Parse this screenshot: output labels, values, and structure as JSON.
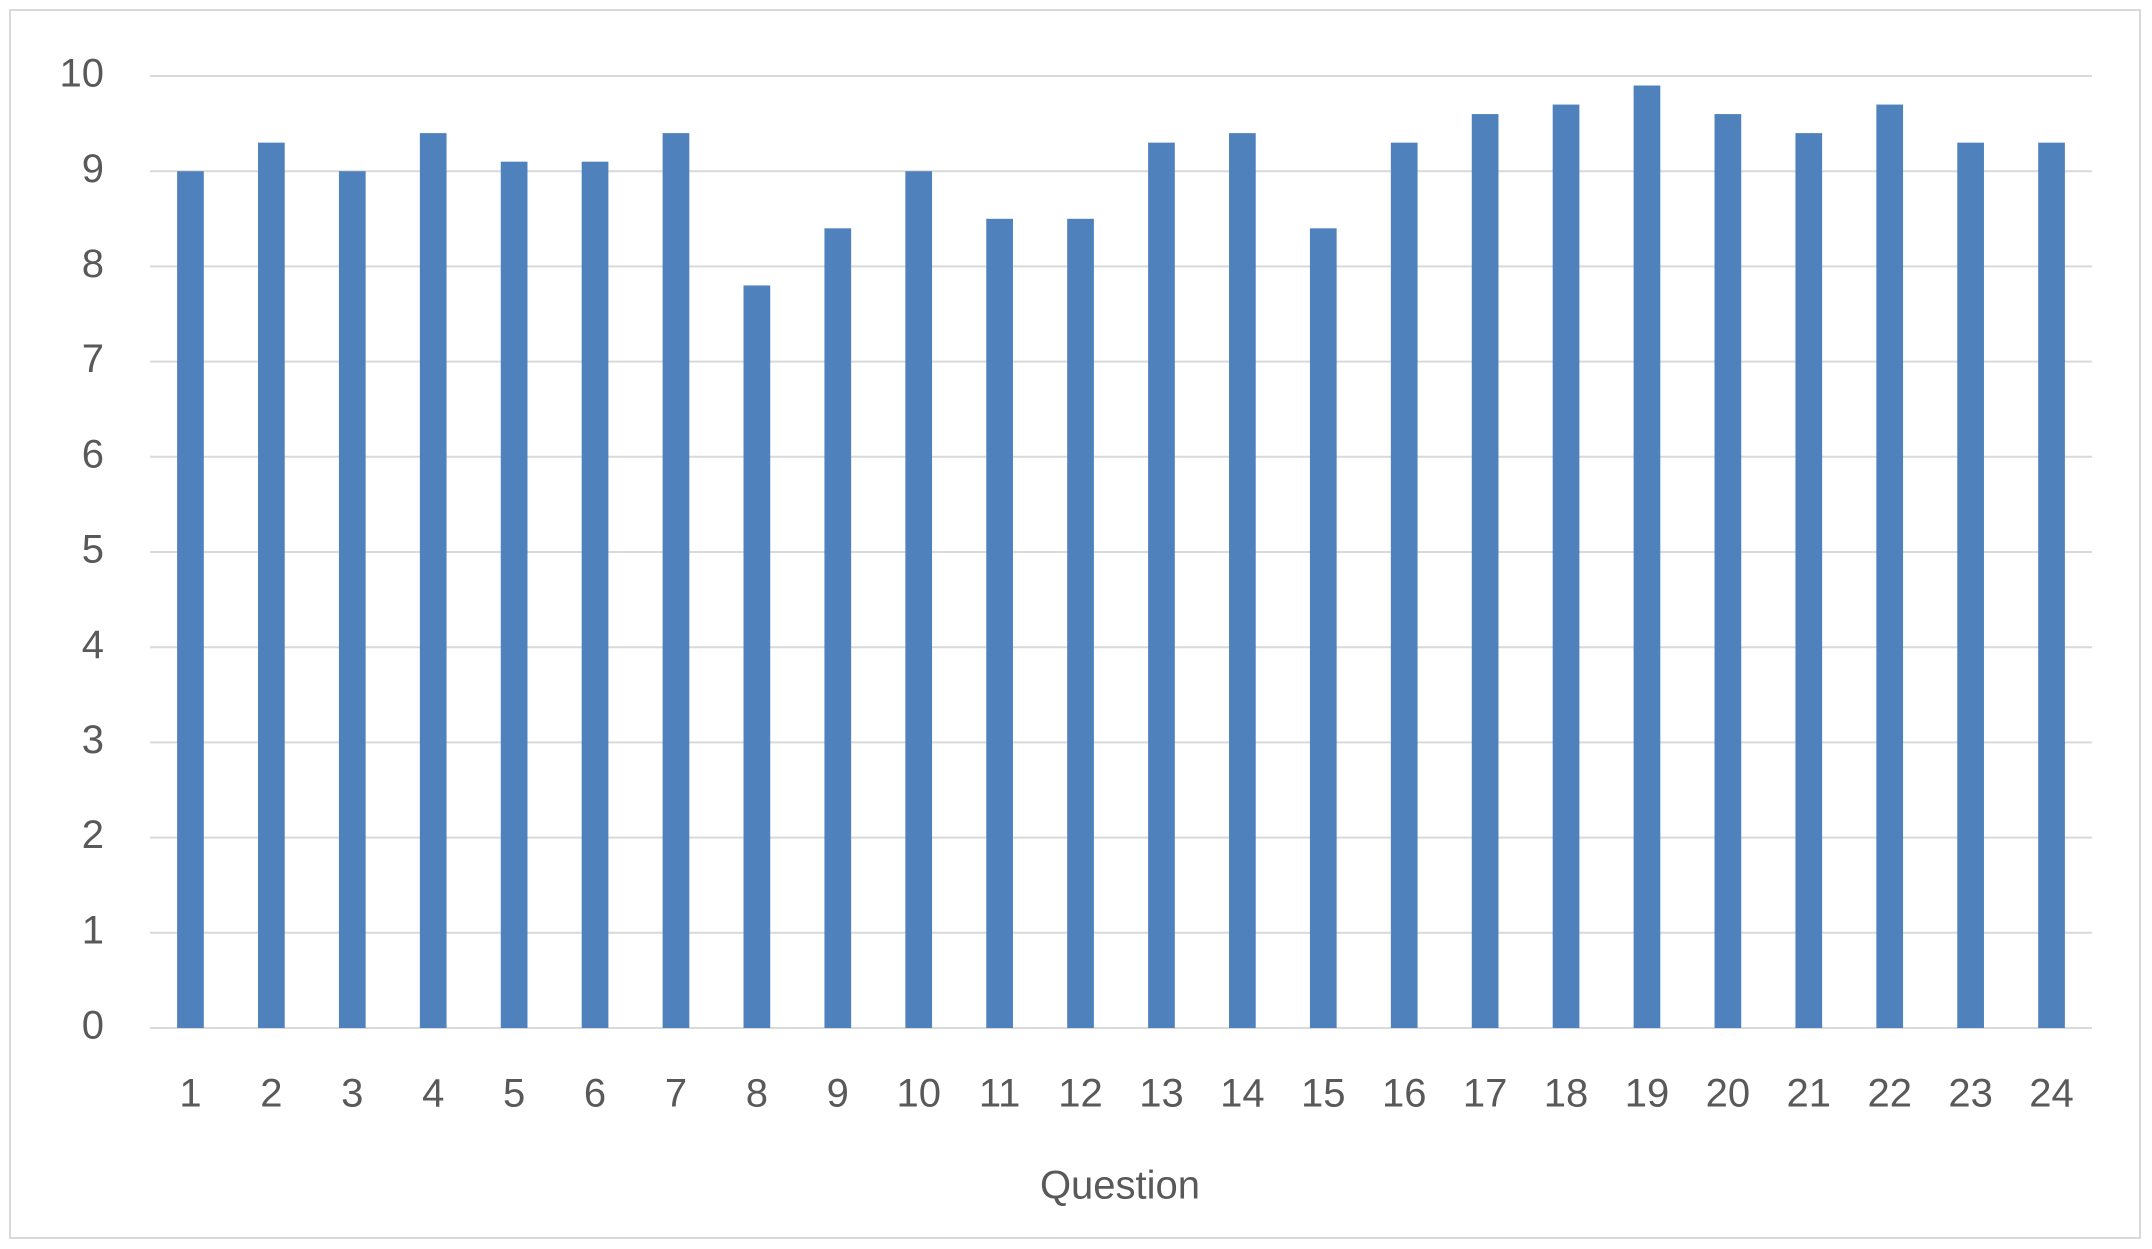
{
  "chart_data": {
    "type": "bar",
    "x_label": "Question",
    "categories": [
      "1",
      "2",
      "3",
      "4",
      "5",
      "6",
      "7",
      "8",
      "9",
      "10",
      "11",
      "12",
      "13",
      "14",
      "15",
      "16",
      "17",
      "18",
      "19",
      "20",
      "21",
      "22",
      "23",
      "24"
    ],
    "values": [
      9.0,
      9.3,
      9.0,
      9.4,
      9.1,
      9.1,
      9.4,
      7.8,
      8.4,
      9.0,
      8.5,
      8.5,
      9.3,
      9.4,
      8.4,
      9.3,
      9.6,
      9.7,
      9.9,
      9.6,
      9.4,
      9.7,
      9.3,
      9.3
    ],
    "color": "#4f81bd",
    "ylim": [
      0,
      10
    ],
    "yticks": [
      0,
      1,
      2,
      3,
      4,
      5,
      6,
      7,
      8,
      9,
      10
    ],
    "grid": true
  }
}
